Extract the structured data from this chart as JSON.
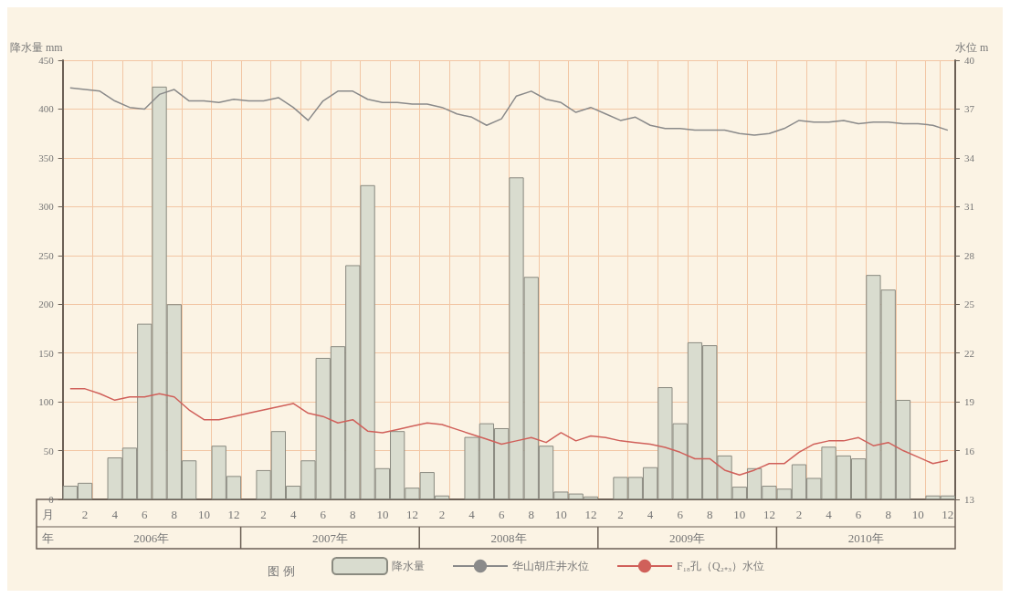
{
  "chart_data": {
    "type": "bar",
    "ylabel": "降水量 mm",
    "y2label": "水位 m",
    "legend_title": "图 例",
    "categories": [
      null,
      "2",
      null,
      "4",
      null,
      "6",
      null,
      "8",
      null,
      "10",
      null,
      "12",
      null,
      "2",
      null,
      "4",
      null,
      "6",
      null,
      "8",
      null,
      "10",
      null,
      "12",
      null,
      "2",
      null,
      "4",
      null,
      "6",
      null,
      "8",
      null,
      "10",
      null,
      "12",
      null,
      "2",
      null,
      "4",
      null,
      "6",
      null,
      "8",
      null,
      "10",
      null,
      "12",
      null,
      "2",
      null,
      "4",
      null,
      "6",
      null,
      "8",
      null,
      "10",
      null,
      "12"
    ],
    "series": [
      {
        "name": "降水量",
        "color": "#d9dccf",
        "values": [
          14,
          17,
          0,
          43,
          53,
          180,
          423,
          200,
          40,
          0,
          55,
          24,
          0,
          30,
          70,
          14,
          40,
          145,
          157,
          240,
          322,
          32,
          70,
          12,
          28,
          4,
          0,
          64,
          78,
          73,
          330,
          228,
          55,
          8,
          6,
          3,
          0,
          23,
          23,
          33,
          115,
          78,
          161,
          158,
          45,
          13,
          32,
          14,
          11,
          36,
          22,
          54,
          45,
          42,
          230,
          215,
          102,
          0,
          4,
          4
        ]
      },
      {
        "name": "华山胡庄井水位",
        "type": "line",
        "axis": "y2",
        "color": "#8a8a8a",
        "values": [
          38.3,
          38.2,
          38.1,
          37.5,
          37.1,
          37.0,
          37.9,
          38.2,
          37.5,
          37.5,
          37.4,
          37.6,
          37.5,
          37.5,
          37.7,
          37.1,
          36.3,
          37.5,
          38.1,
          38.1,
          37.6,
          37.4,
          37.4,
          37.3,
          37.3,
          37.1,
          36.7,
          36.5,
          36.0,
          36.4,
          37.8,
          38.1,
          37.6,
          37.4,
          36.8,
          37.1,
          36.7,
          36.3,
          36.5,
          36.0,
          35.8,
          35.8,
          35.7,
          35.7,
          35.7,
          35.5,
          35.4,
          35.5,
          35.8,
          36.3,
          36.2,
          36.2,
          36.3,
          36.1,
          36.2,
          36.2,
          36.1,
          36.1,
          36.0,
          35.7
        ]
      },
      {
        "name": "F₁₈孔（Q₂₊₃）水位",
        "type": "line",
        "axis": "y2",
        "color": "#d0605a",
        "values": [
          19.8,
          19.8,
          19.5,
          19.1,
          19.3,
          19.3,
          19.5,
          19.3,
          18.5,
          17.9,
          17.9,
          18.1,
          18.3,
          18.5,
          18.7,
          18.9,
          18.3,
          18.1,
          17.7,
          17.9,
          17.2,
          17.1,
          17.3,
          17.5,
          17.7,
          17.6,
          17.3,
          17.0,
          16.7,
          16.4,
          16.6,
          16.8,
          16.5,
          17.1,
          16.6,
          16.9,
          16.8,
          16.6,
          16.5,
          16.4,
          16.2,
          15.9,
          15.5,
          15.5,
          14.8,
          14.5,
          14.8,
          15.2,
          15.2,
          15.9,
          16.4,
          16.6,
          16.6,
          16.8,
          16.3,
          16.5,
          16.0,
          15.6,
          15.2,
          15.4
        ]
      }
    ],
    "ylim": [
      0,
      450
    ],
    "yticks": [
      0,
      50,
      100,
      150,
      200,
      250,
      300,
      350,
      400,
      450
    ],
    "y2lim": [
      13,
      40
    ],
    "y2ticks": [
      13,
      16,
      19,
      22,
      25,
      28,
      31,
      34,
      37,
      40
    ],
    "grid": true,
    "legend": "bottom",
    "annotations": [
      "月",
      "年",
      "2006年",
      "2007年",
      "2008年",
      "2009年",
      "2010年"
    ]
  }
}
